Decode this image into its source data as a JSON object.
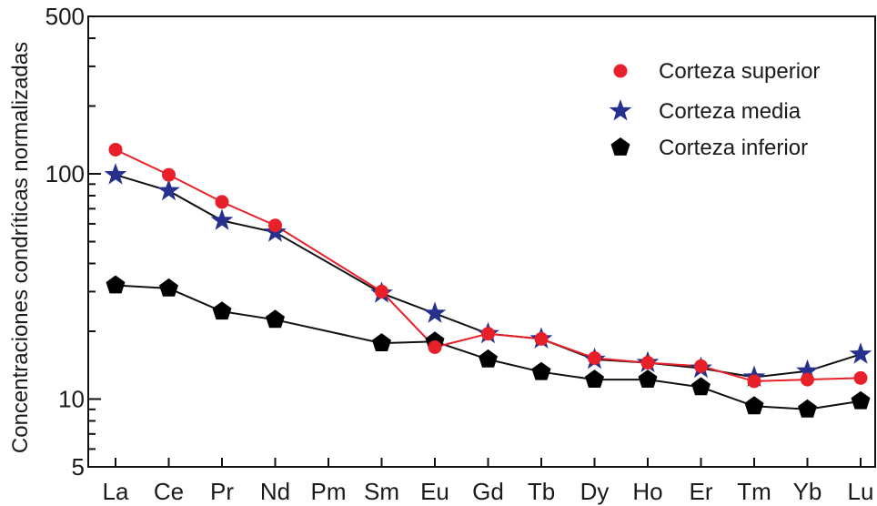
{
  "chart_data": {
    "type": "line",
    "title": "",
    "xlabel": "",
    "ylabel": "Concentraciones condríticas normalizadas",
    "y_scale": "log",
    "ylim": [
      5,
      500
    ],
    "y_ticks": [
      "500",
      "100",
      "10",
      "5"
    ],
    "grid": false,
    "legend_position": "top-right",
    "categories": [
      "La",
      "Ce",
      "Pr",
      "Nd",
      "Pm",
      "Sm",
      "Eu",
      "Gd",
      "Tb",
      "Dy",
      "Ho",
      "Er",
      "Tm",
      "Yb",
      "Lu"
    ],
    "series": [
      {
        "name": "Corteza superior",
        "marker": "circle",
        "marker_color": "#e8202a",
        "line_color": "#e8202a",
        "values": [
          128,
          99,
          75,
          59,
          null,
          30,
          17,
          19.5,
          18.5,
          15.2,
          14.5,
          14,
          12,
          12.2,
          12.4
        ]
      },
      {
        "name": "Corteza media",
        "marker": "star",
        "marker_color": "#25318c",
        "line_color": "#111111",
        "values": [
          99,
          84,
          62,
          55,
          null,
          29.5,
          24,
          19.5,
          18.5,
          15,
          14.5,
          13.7,
          12.5,
          13.3,
          15.8
        ]
      },
      {
        "name": "Corteza inferior",
        "marker": "pentagon",
        "marker_color": "#000000",
        "line_color": "#111111",
        "values": [
          32,
          31,
          24.5,
          22.5,
          null,
          17.7,
          18,
          15,
          13.2,
          12.2,
          12.2,
          11.3,
          9.3,
          9,
          9.8
        ]
      }
    ]
  }
}
